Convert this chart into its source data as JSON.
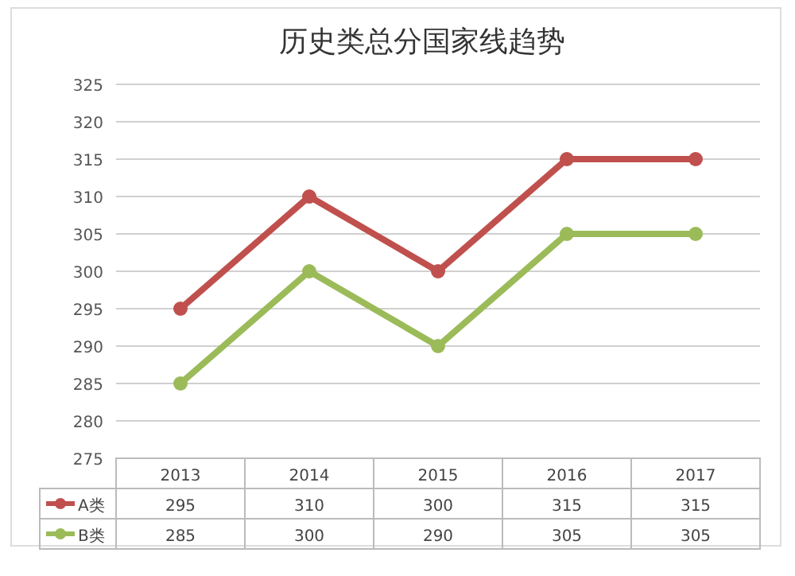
{
  "chart_data": {
    "type": "line",
    "title": "历史类总分国家线趋势",
    "categories": [
      "2013",
      "2014",
      "2015",
      "2016",
      "2017"
    ],
    "series": [
      {
        "name": "A类",
        "color": "#c0504d",
        "values": [
          295,
          310,
          300,
          315,
          315
        ]
      },
      {
        "name": "B类",
        "color": "#9bbb59",
        "values": [
          285,
          300,
          290,
          305,
          305
        ]
      }
    ],
    "ylim": [
      275,
      325
    ],
    "yticks": [
      275,
      280,
      285,
      290,
      295,
      300,
      305,
      310,
      315,
      320,
      325
    ],
    "grid": "y",
    "marker": "circle",
    "line_style": "solid",
    "data_labels": true,
    "legend": "bottom left"
  }
}
